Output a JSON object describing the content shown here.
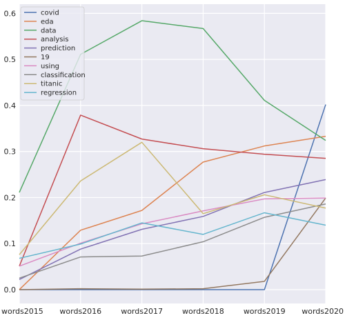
{
  "chart_data": {
    "type": "line",
    "categories": [
      "words2015",
      "words2016",
      "words2017",
      "words2018",
      "words2019",
      "words2020"
    ],
    "ylim": [
      -0.03,
      0.62
    ],
    "yticks": [
      0.0,
      0.1,
      0.2,
      0.3,
      0.4,
      0.5,
      0.6
    ],
    "ytick_labels": [
      "0.0",
      "0.1",
      "0.2",
      "0.3",
      "0.4",
      "0.5",
      "0.6"
    ],
    "grid": true,
    "legend_position": "top-left",
    "background": "#eaeaf2",
    "series": [
      {
        "name": "covid",
        "color": "#4c72b0",
        "values": [
          0.0,
          0.0,
          0.0,
          0.0,
          0.0,
          0.402
        ]
      },
      {
        "name": "eda",
        "color": "#dd8452",
        "values": [
          0.0,
          0.129,
          0.172,
          0.277,
          0.312,
          0.333
        ]
      },
      {
        "name": "data",
        "color": "#55a868",
        "values": [
          0.211,
          0.511,
          0.584,
          0.567,
          0.411,
          0.324
        ]
      },
      {
        "name": "analysis",
        "color": "#c44e52",
        "values": [
          0.051,
          0.379,
          0.327,
          0.306,
          0.294,
          0.285
        ]
      },
      {
        "name": "prediction",
        "color": "#8172b3",
        "values": [
          0.022,
          0.088,
          0.131,
          0.159,
          0.211,
          0.239
        ]
      },
      {
        "name": "19",
        "color": "#937860",
        "values": [
          0.0,
          0.002,
          0.001,
          0.002,
          0.018,
          0.199
        ]
      },
      {
        "name": "using",
        "color": "#da8bc3",
        "values": [
          0.051,
          0.101,
          0.143,
          0.171,
          0.197,
          0.199
        ]
      },
      {
        "name": "classification",
        "color": "#8c8c8c",
        "values": [
          0.025,
          0.071,
          0.073,
          0.104,
          0.157,
          0.186
        ]
      },
      {
        "name": "titanic",
        "color": "#ccb974",
        "values": [
          0.076,
          0.236,
          0.32,
          0.165,
          0.206,
          0.177
        ]
      },
      {
        "name": "regression",
        "color": "#64b5cd",
        "values": [
          0.068,
          0.099,
          0.145,
          0.12,
          0.167,
          0.14
        ]
      }
    ]
  }
}
